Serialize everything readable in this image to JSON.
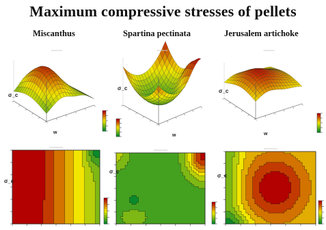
{
  "title": "Maximum compressive stresses of pellets",
  "columns": [
    {
      "label": "Miscanthus"
    },
    {
      "label": "Spartina pectinata"
    },
    {
      "label": "Jerusalem artichoke"
    }
  ],
  "colors": {
    "high": "#b30000",
    "mid": "#f2e600",
    "low": "#0a8a2a",
    "mesh": "#1a1a1a"
  },
  "chart_data": [
    {
      "type": "heatmap",
      "subtype": "surface",
      "material": "Miscanthus",
      "zlabel": "σ_c",
      "xlabel": "w"
    },
    {
      "type": "heatmap",
      "subtype": "surface",
      "material": "Spartina pectinata",
      "zlabel": "σ_c",
      "xlabel": "w"
    },
    {
      "type": "heatmap",
      "subtype": "surface",
      "material": "Jerusalem artichoke",
      "zlabel": "σ_c",
      "xlabel": "w"
    },
    {
      "type": "heatmap",
      "subtype": "contour",
      "material": "Miscanthus",
      "ylabel": "σ_c"
    },
    {
      "type": "heatmap",
      "subtype": "contour",
      "material": "Spartina pectinata",
      "ylabel": "σ_c"
    },
    {
      "type": "heatmap",
      "subtype": "contour",
      "material": "Jerusalem artichoke",
      "ylabel": "σ_c"
    }
  ]
}
